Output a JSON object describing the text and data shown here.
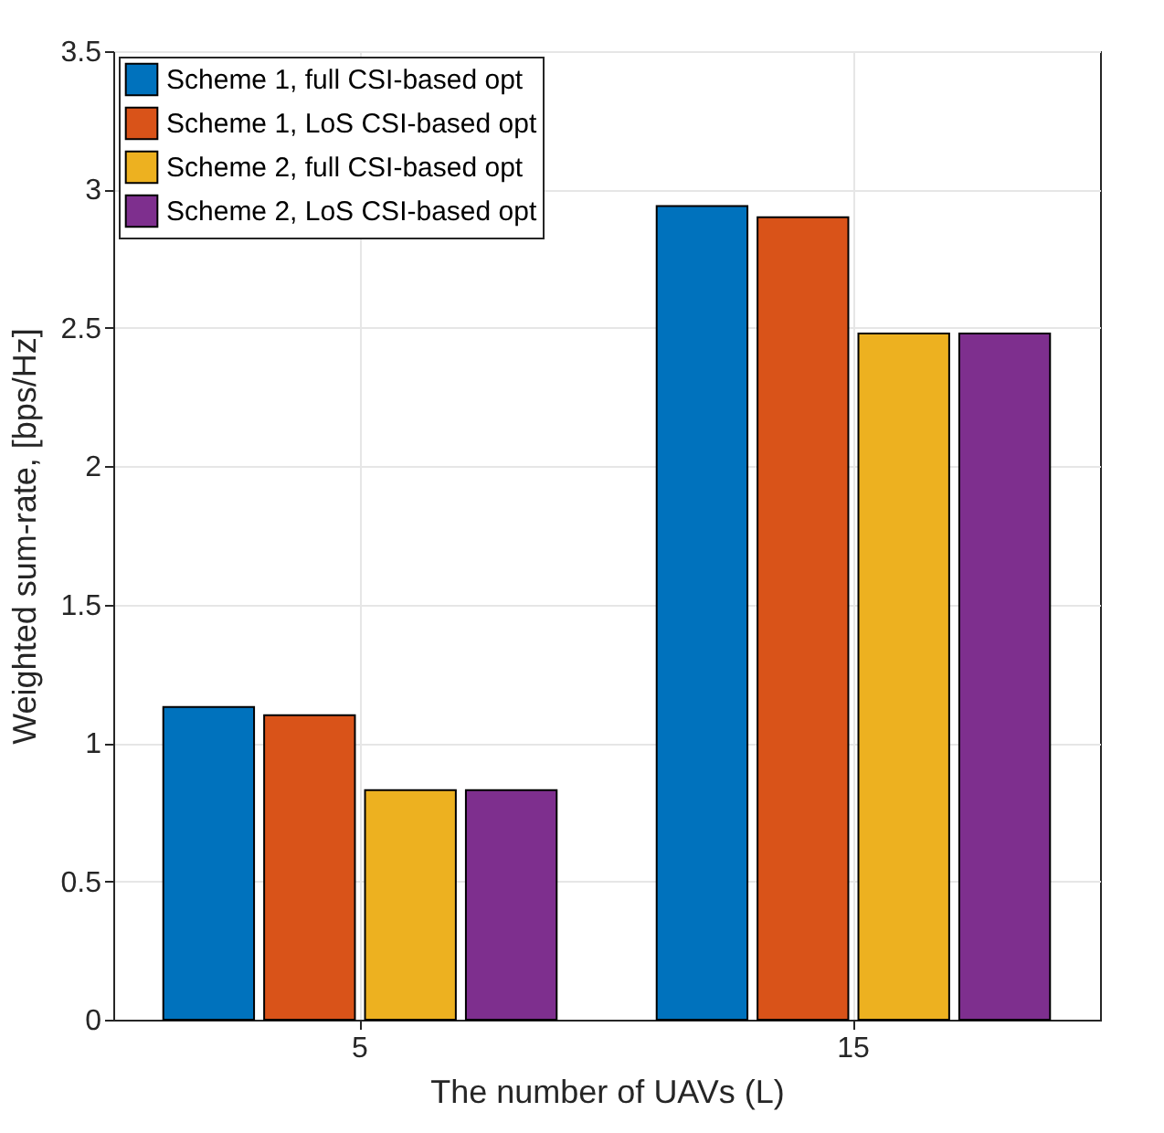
{
  "chart_data": {
    "type": "bar",
    "xlabel": "The number of UAVs (L)",
    "ylabel": "Weighted sum-rate, [bps/Hz]",
    "categories": [
      "5",
      "15"
    ],
    "series": [
      {
        "name": "Scheme 1, full CSI-based opt",
        "color": "#0072bd",
        "values": [
          1.13,
          2.94
        ]
      },
      {
        "name": "Scheme 1, LoS CSI-based opt",
        "color": "#d95319",
        "values": [
          1.1,
          2.9
        ]
      },
      {
        "name": "Scheme 2, full CSI-based opt",
        "color": "#edb120",
        "values": [
          0.83,
          2.48
        ]
      },
      {
        "name": "Scheme 2, LoS CSI-based opt",
        "color": "#7e2f8e",
        "values": [
          0.83,
          2.48
        ]
      }
    ],
    "ylim": [
      0,
      3.5
    ],
    "yticks": [
      0,
      0.5,
      1,
      1.5,
      2,
      2.5,
      3,
      3.5
    ],
    "grid": true,
    "legend": "top left"
  }
}
